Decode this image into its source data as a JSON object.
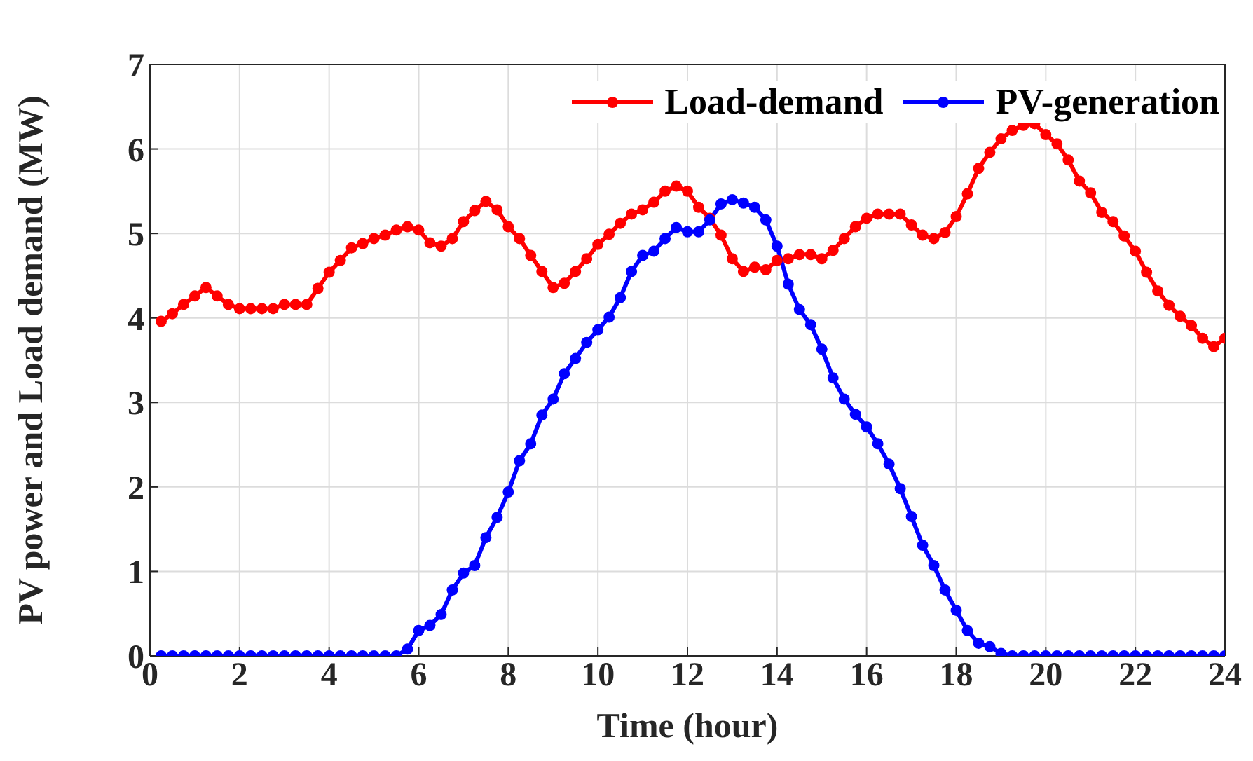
{
  "chart_data": {
    "type": "line",
    "xlabel": "Time (hour)",
    "ylabel": "PV power and Load demand (MW)",
    "x": [
      0.25,
      0.5,
      0.75,
      1,
      1.25,
      1.5,
      1.75,
      2,
      2.25,
      2.5,
      2.75,
      3,
      3.25,
      3.5,
      3.75,
      4,
      4.25,
      4.5,
      4.75,
      5,
      5.25,
      5.5,
      5.75,
      6,
      6.25,
      6.5,
      6.75,
      7,
      7.25,
      7.5,
      7.75,
      8,
      8.25,
      8.5,
      8.75,
      9,
      9.25,
      9.5,
      9.75,
      10,
      10.25,
      10.5,
      10.75,
      11,
      11.25,
      11.5,
      11.75,
      12,
      12.25,
      12.5,
      12.75,
      13,
      13.25,
      13.5,
      13.75,
      14,
      14.25,
      14.5,
      14.75,
      15,
      15.25,
      15.5,
      15.75,
      16,
      16.25,
      16.5,
      16.75,
      17,
      17.25,
      17.5,
      17.75,
      18,
      18.25,
      18.5,
      18.75,
      19,
      19.25,
      19.5,
      19.75,
      20,
      20.25,
      20.5,
      20.75,
      21,
      21.25,
      21.5,
      21.75,
      22,
      22.25,
      22.5,
      22.75,
      23,
      23.25,
      23.5,
      23.75,
      24
    ],
    "series": [
      {
        "name": "Load-demand",
        "color": "#ff0000",
        "values": [
          3.96,
          4.05,
          4.16,
          4.26,
          4.36,
          4.26,
          4.16,
          4.11,
          4.11,
          4.11,
          4.11,
          4.16,
          4.16,
          4.16,
          4.35,
          4.54,
          4.68,
          4.83,
          4.88,
          4.94,
          4.98,
          5.04,
          5.08,
          5.04,
          4.89,
          4.85,
          4.94,
          5.14,
          5.27,
          5.38,
          5.28,
          5.08,
          4.94,
          4.74,
          4.55,
          4.36,
          4.41,
          4.55,
          4.7,
          4.87,
          4.99,
          5.12,
          5.23,
          5.28,
          5.37,
          5.5,
          5.56,
          5.5,
          5.31,
          5.18,
          4.98,
          4.7,
          4.55,
          4.6,
          4.57,
          4.68,
          4.7,
          4.75,
          4.75,
          4.7,
          4.8,
          4.94,
          5.08,
          5.18,
          5.23,
          5.23,
          5.23,
          5.1,
          4.98,
          4.94,
          5.01,
          5.2,
          5.47,
          5.77,
          5.96,
          6.12,
          6.22,
          6.28,
          6.3,
          6.17,
          6.06,
          5.87,
          5.62,
          5.48,
          5.25,
          5.14,
          4.97,
          4.79,
          4.54,
          4.32,
          4.15,
          4.02,
          3.91,
          3.76,
          3.66,
          3.76
        ]
      },
      {
        "name": "PV-generation",
        "color": "#0000ff",
        "values": [
          0,
          0,
          0,
          0,
          0,
          0,
          0,
          0,
          0,
          0,
          0,
          0,
          0,
          0,
          0,
          0,
          0,
          0,
          0,
          0,
          0,
          0,
          0.08,
          0.3,
          0.36,
          0.49,
          0.78,
          0.98,
          1.07,
          1.4,
          1.64,
          1.94,
          2.31,
          2.51,
          2.85,
          3.04,
          3.34,
          3.52,
          3.71,
          3.86,
          4.01,
          4.24,
          4.55,
          4.74,
          4.79,
          4.94,
          5.07,
          5.02,
          5.02,
          5.16,
          5.35,
          5.4,
          5.36,
          5.31,
          5.16,
          4.85,
          4.4,
          4.1,
          3.92,
          3.63,
          3.29,
          3.04,
          2.86,
          2.71,
          2.51,
          2.27,
          1.98,
          1.65,
          1.31,
          1.07,
          0.78,
          0.54,
          0.3,
          0.15,
          0.11,
          0.03,
          0,
          0,
          0,
          0,
          0,
          0,
          0,
          0,
          0,
          0,
          0,
          0,
          0,
          0,
          0,
          0,
          0,
          0,
          0,
          0
        ]
      }
    ],
    "xlim": [
      0,
      24
    ],
    "xticks": [
      0,
      2,
      4,
      6,
      8,
      10,
      12,
      14,
      16,
      18,
      20,
      22,
      24
    ],
    "ylim": [
      0,
      7
    ],
    "yticks": [
      0,
      1,
      2,
      3,
      4,
      5,
      6,
      7
    ],
    "grid": true,
    "legend": "top right",
    "marker": "circle",
    "line_style": "solid"
  }
}
